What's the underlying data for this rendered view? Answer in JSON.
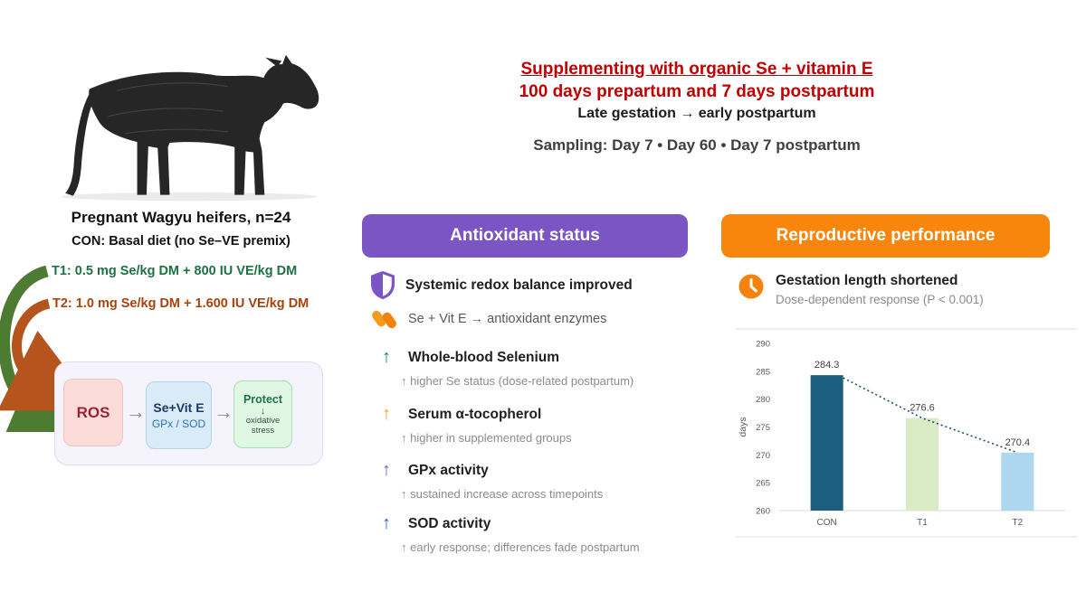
{
  "title": {
    "line1": "Supplementing with organic Se + vitamin E",
    "line2": "100 days prepartum and 7 days postpartum",
    "line3": "Late gestation → early postpartum",
    "sampling": "Sampling: Day 7 • Day 60 • Day 7 postpartum",
    "accent_red": "#C00000"
  },
  "study": {
    "caption": "Pregnant Wagyu heifers, n=24",
    "control": "CON: Basal diet (no Se–VE premix)",
    "t1": "T1: 0.5 mg Se/kg DM + 800 IU VE/kg DM",
    "t2": "T2: 1.0 mg Se/kg DM + 1.600 IU VE/kg DM",
    "t1_color": "#1E7145",
    "t2_color": "#A8430B",
    "arrow_green": "#4E7B32",
    "arrow_brown": "#B5541C"
  },
  "mechanism": {
    "ros_label": "ROS",
    "arrow1": "→",
    "sevite_title": "Se+Vit E",
    "sevite_sub": "GPx / SOD",
    "arrow2": "→",
    "protect_title": "Protect",
    "protect_down": "↓",
    "protect_line1": "oxidative",
    "protect_line2": "stress"
  },
  "antioxidant": {
    "header": "Antioxidant status",
    "header_bg": "#7B55C3",
    "lead": "Systemic redox balance improved",
    "sublead": "Se + Vit E → antioxidant enzymes",
    "items": [
      {
        "title": "Whole-blood Selenium",
        "detail": "↑ higher Se status (dose-related postpartum)",
        "arrow_color": "#1B7F6E"
      },
      {
        "title": "Serum α-tocopherol",
        "detail": "↑ higher in supplemented groups",
        "arrow_color": "#F5A623"
      },
      {
        "title": "GPx activity",
        "detail": "↑ sustained increase across timepoints",
        "arrow_color": "#7A5BC7"
      },
      {
        "title": "SOD activity",
        "detail": "↑ early response; differences fade postpartum",
        "arrow_color": "#2F5BD9"
      }
    ]
  },
  "reproductive": {
    "header": "Reproductive performance",
    "header_bg": "#F8860D",
    "lead": "Gestation length shortened",
    "sublead": "Dose-dependent response (P < 0.001)"
  },
  "chart_data": {
    "type": "bar",
    "title": "",
    "categories": [
      "CON",
      "T1",
      "T2"
    ],
    "values": [
      284.3,
      276.6,
      270.4
    ],
    "value_labels": [
      "284.3",
      "276.6",
      "270.4"
    ],
    "xlabel": "",
    "ylabel": "days",
    "ylim": [
      260,
      290
    ],
    "yticks": [
      260,
      265,
      270,
      275,
      280,
      285,
      290
    ],
    "bar_colors": [
      "#1D5E7E",
      "#D9ECC4",
      "#AED6EE"
    ],
    "trendline": {
      "style": "dotted",
      "color": "#1F4E79"
    },
    "grid": false,
    "legend": false
  }
}
